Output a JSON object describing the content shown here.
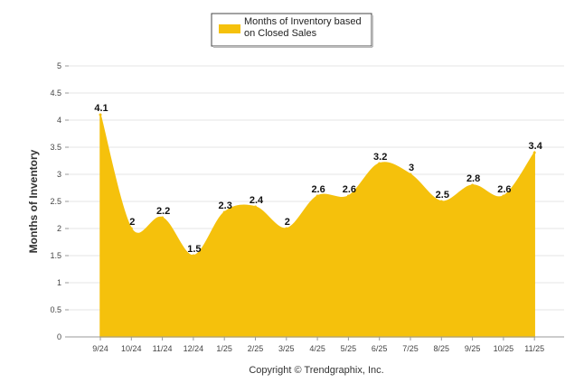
{
  "chart_data": {
    "type": "area",
    "series": [
      {
        "name": "Months of Inventory based on Closed Sales",
        "legend_lines": [
          "Months of Inventory based",
          "on Closed Sales"
        ],
        "color": "#F5C10C",
        "values": [
          4.1,
          2,
          2.2,
          1.5,
          2.3,
          2.4,
          2,
          2.6,
          2.6,
          3.2,
          3,
          2.5,
          2.8,
          2.6,
          3.4
        ],
        "labels": [
          "4.1",
          "2",
          "2.2",
          "1.5",
          "2.3",
          "2.4",
          "2",
          "2.6",
          "2.6",
          "3.2",
          "3",
          "2.5",
          "2.8",
          "2.6",
          "3.4"
        ]
      }
    ],
    "categories": [
      "9/24",
      "10/24",
      "11/24",
      "12/24",
      "1/25",
      "2/25",
      "3/25",
      "4/25",
      "5/25",
      "6/25",
      "7/25",
      "8/25",
      "9/25",
      "10/25",
      "11/25"
    ],
    "ylabel": "Months of Inventory",
    "xlabel": "",
    "ylim": [
      0,
      5
    ],
    "yticks": [
      "0",
      "0.5",
      "1",
      "1.5",
      "2",
      "2.5",
      "3",
      "3.5",
      "4",
      "4.5",
      "5"
    ],
    "grid": true,
    "legend_position": "top-center",
    "copyright": "Copyright © Trendgraphix, Inc."
  }
}
